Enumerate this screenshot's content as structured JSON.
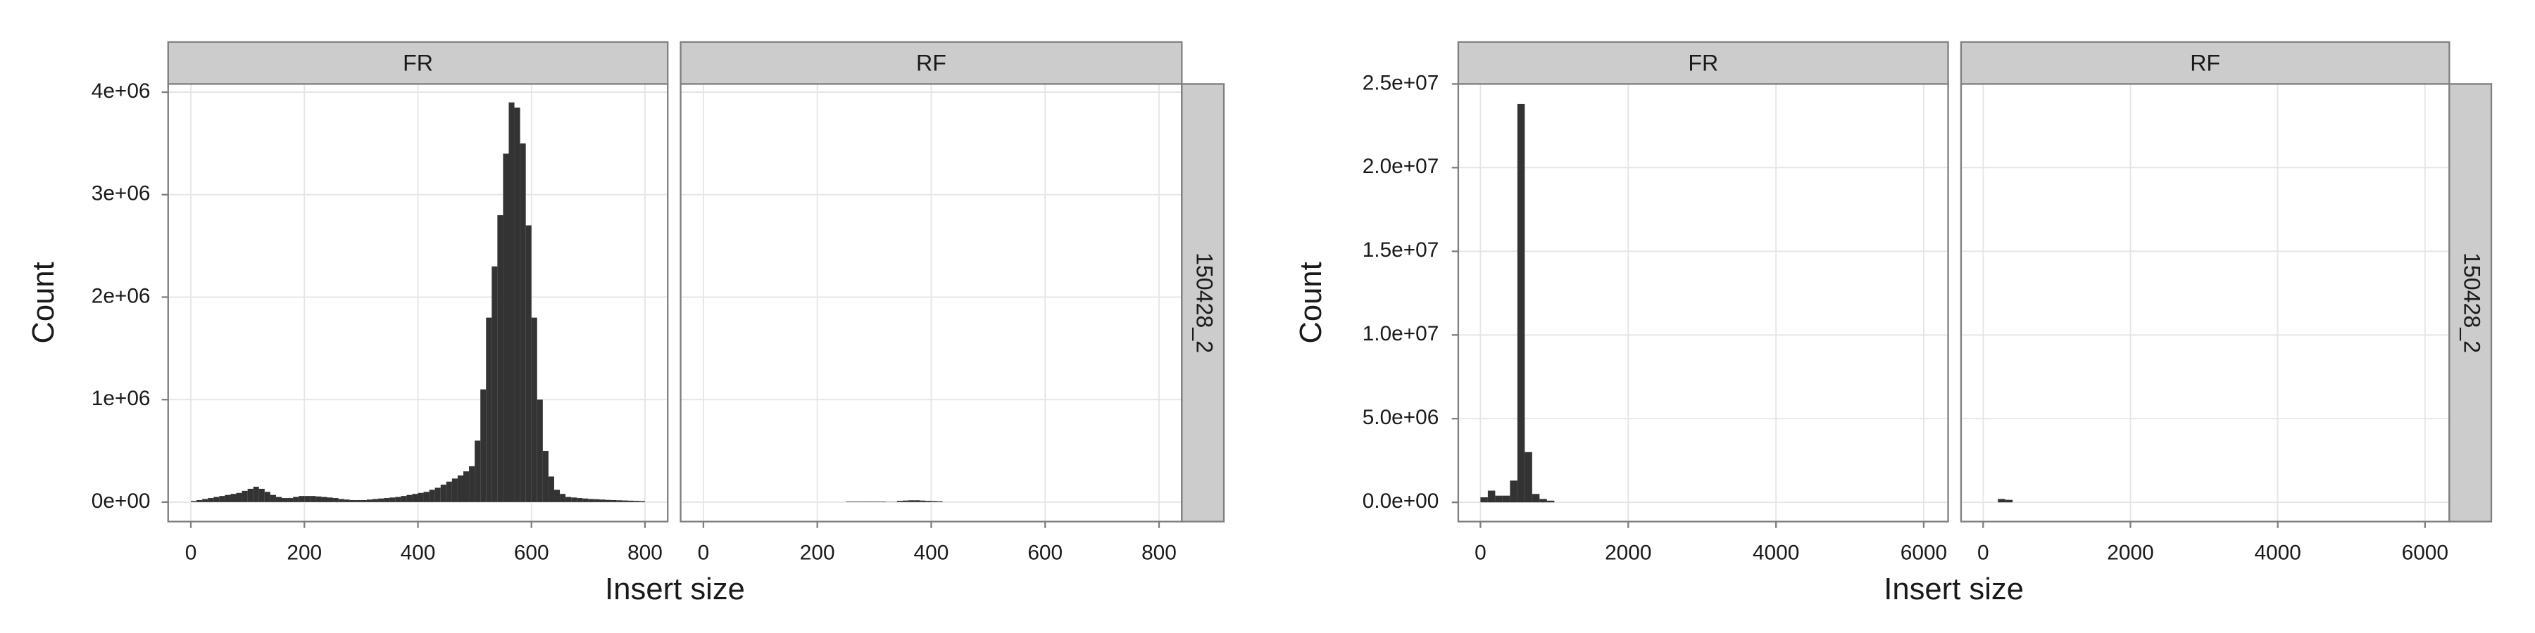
{
  "chart_data": [
    {
      "type": "histogram",
      "x_label": "Insert size",
      "y_label": "Count",
      "row_strip": "150428_2",
      "xlim": [
        -40,
        840
      ],
      "xticks": [
        0,
        200,
        400,
        600,
        800
      ],
      "ylim": [
        -190000,
        4080000
      ],
      "yticks": [
        {
          "value": 0,
          "label": "0e+00"
        },
        {
          "value": 1000000,
          "label": "1e+06"
        },
        {
          "value": 2000000,
          "label": "2e+06"
        },
        {
          "value": 3000000,
          "label": "3e+06"
        },
        {
          "value": 4000000,
          "label": "4e+06"
        }
      ],
      "grid": true,
      "color": "#333333",
      "panels": [
        {
          "title": "FR",
          "bins": [
            0,
            10,
            20,
            30,
            40,
            50,
            60,
            70,
            80,
            90,
            100,
            110,
            120,
            130,
            140,
            150,
            160,
            170,
            180,
            190,
            200,
            210,
            220,
            230,
            240,
            250,
            260,
            270,
            280,
            290,
            300,
            310,
            320,
            330,
            340,
            350,
            360,
            370,
            380,
            390,
            400,
            410,
            420,
            430,
            440,
            450,
            460,
            470,
            480,
            490,
            500,
            510,
            520,
            530,
            540,
            550,
            560,
            570,
            580,
            590,
            600,
            610,
            620,
            630,
            640,
            650,
            660,
            670,
            680,
            690,
            700,
            710,
            720,
            730,
            740,
            750,
            760,
            770,
            780,
            790,
            800
          ],
          "values": [
            10000,
            20000,
            30000,
            40000,
            50000,
            60000,
            70000,
            80000,
            90000,
            110000,
            130000,
            150000,
            130000,
            100000,
            70000,
            50000,
            40000,
            40000,
            50000,
            60000,
            60000,
            60000,
            55000,
            50000,
            45000,
            40000,
            30000,
            25000,
            20000,
            20000,
            20000,
            25000,
            30000,
            35000,
            40000,
            45000,
            50000,
            60000,
            70000,
            80000,
            90000,
            100000,
            120000,
            140000,
            170000,
            200000,
            230000,
            260000,
            300000,
            350000,
            600000,
            1100000,
            1800000,
            2300000,
            2800000,
            3400000,
            3900000,
            3850000,
            3500000,
            2700000,
            1800000,
            1000000,
            500000,
            250000,
            120000,
            80000,
            50000,
            45000,
            40000,
            35000,
            30000,
            28000,
            25000,
            22000,
            20000,
            18000,
            16000,
            14000,
            12000,
            10000
          ]
        },
        {
          "title": "RF",
          "bins": [
            250,
            260,
            270,
            280,
            290,
            300,
            310,
            320,
            330,
            340,
            350,
            360,
            370,
            380,
            390,
            400,
            410,
            420
          ],
          "values": [
            5000,
            5000,
            5000,
            5000,
            5000,
            5000,
            5000,
            2000,
            2000,
            12000,
            15000,
            18000,
            18000,
            15000,
            12000,
            10000,
            8000
          ]
        }
      ]
    },
    {
      "type": "histogram",
      "x_label": "Insert size",
      "y_label": "Count",
      "row_strip": "150428_2",
      "xlim": [
        -300,
        6330
      ],
      "xticks": [
        0,
        2000,
        4000,
        6000
      ],
      "ylim": [
        -1150000,
        25000000
      ],
      "yticks": [
        {
          "value": 0,
          "label": "0.0e+00"
        },
        {
          "value": 5000000,
          "label": "5.0e+06"
        },
        {
          "value": 10000000,
          "label": "1.0e+07"
        },
        {
          "value": 15000000,
          "label": "1.5e+07"
        },
        {
          "value": 20000000,
          "label": "2.0e+07"
        },
        {
          "value": 25000000,
          "label": "2.5e+07"
        }
      ],
      "grid": true,
      "color": "#333333",
      "panels": [
        {
          "title": "FR",
          "bins": [
            0,
            100,
            200,
            300,
            400,
            500,
            600,
            700,
            800,
            900,
            1000
          ],
          "values": [
            300000,
            700000,
            400000,
            400000,
            1300000,
            23800000,
            3000000,
            500000,
            200000,
            100000
          ]
        },
        {
          "title": "RF",
          "bins": [
            200,
            300,
            400
          ],
          "values": [
            200000,
            150000
          ]
        }
      ]
    }
  ]
}
